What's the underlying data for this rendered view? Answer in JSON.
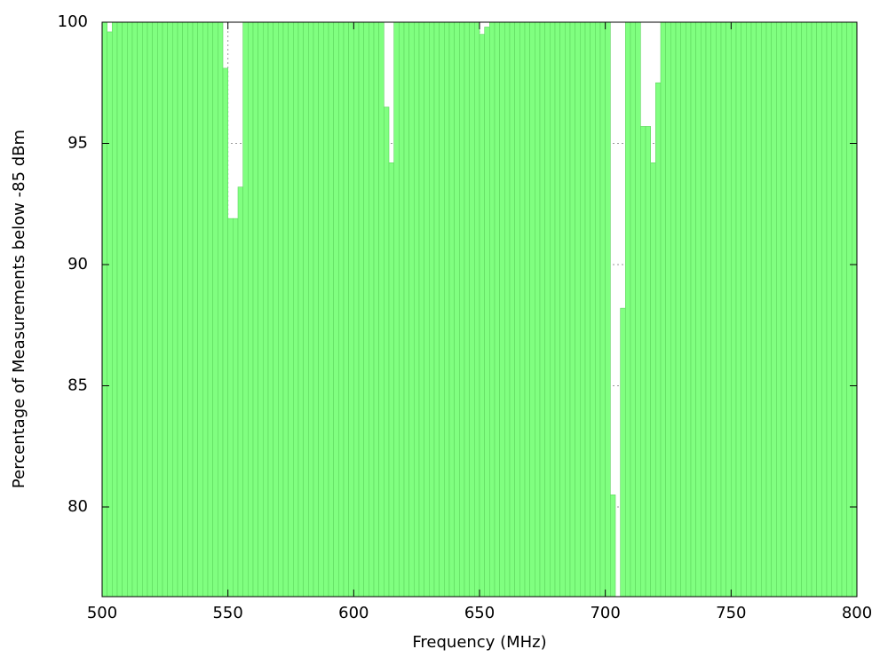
{
  "chart_data": {
    "type": "histogram",
    "x_label": "Frequency (MHz)",
    "y_label": "Percentage of Measurements below -85 dBm",
    "color": "#80ff80",
    "edge_color": "#5ed65e",
    "bins": [
      500,
      502,
      504,
      506,
      508,
      510,
      512,
      514,
      516,
      518,
      520,
      522,
      524,
      526,
      528,
      530,
      532,
      534,
      536,
      538,
      540,
      542,
      544,
      546,
      548,
      550,
      552,
      554,
      556,
      558,
      560,
      562,
      564,
      566,
      568,
      570,
      572,
      574,
      576,
      578,
      580,
      582,
      584,
      586,
      588,
      590,
      592,
      594,
      596,
      598,
      600,
      602,
      604,
      606,
      608,
      610,
      612,
      614,
      616,
      618,
      620,
      622,
      624,
      626,
      628,
      630,
      632,
      634,
      636,
      638,
      640,
      642,
      644,
      646,
      648,
      650,
      652,
      654,
      656,
      658,
      660,
      662,
      664,
      666,
      668,
      670,
      672,
      674,
      676,
      678,
      680,
      682,
      684,
      686,
      688,
      690,
      692,
      694,
      696,
      698,
      700,
      702,
      704,
      706,
      708,
      710,
      712,
      714,
      716,
      718,
      720,
      722,
      724,
      726,
      728,
      730,
      732,
      734,
      736,
      738,
      740,
      742,
      744,
      746,
      748,
      750,
      752,
      754,
      756,
      758,
      760,
      762,
      764,
      766,
      768,
      770,
      772,
      774,
      776,
      778,
      780,
      782,
      784,
      786,
      788,
      790,
      792,
      794,
      796,
      798,
      800
    ],
    "values": [
      100,
      99.6,
      100,
      100,
      100,
      100,
      100,
      100,
      100,
      100,
      100,
      100,
      100,
      100,
      100,
      100,
      100,
      100,
      100,
      100,
      100,
      100,
      100,
      100,
      98.1,
      91.9,
      91.9,
      93.2,
      100,
      100,
      100,
      100,
      100,
      100,
      100,
      100,
      100,
      100,
      100,
      100,
      100,
      100,
      100,
      100,
      100,
      100,
      100,
      100,
      100,
      100,
      100,
      100,
      100,
      100,
      100,
      100,
      96.5,
      94.2,
      100,
      100,
      100,
      100,
      100,
      100,
      100,
      100,
      100,
      100,
      100,
      100,
      100,
      100,
      100,
      100,
      100,
      99.5,
      99.8,
      100,
      100,
      100,
      100,
      100,
      100,
      100,
      100,
      100,
      100,
      100,
      100,
      100,
      100,
      100,
      100,
      100,
      100,
      100,
      100,
      100,
      100,
      100,
      100,
      80.5,
      76,
      88.2,
      100,
      100,
      100,
      95.7,
      95.7,
      94.2,
      97.5,
      100,
      100,
      100,
      100,
      100,
      100,
      100,
      100,
      100,
      100,
      100,
      100,
      100,
      100,
      100,
      100,
      100,
      100,
      100,
      100,
      100,
      100,
      100,
      100,
      100,
      100,
      100,
      100,
      100,
      100,
      100,
      100,
      100,
      100,
      100,
      100,
      100,
      100,
      100
    ],
    "xlim": [
      500,
      800
    ],
    "xticks": [
      500,
      550,
      600,
      650,
      700,
      750,
      800
    ],
    "ylim": [
      76.3,
      100
    ],
    "yticks": [
      80,
      85,
      90,
      95,
      100
    ],
    "grid": true
  }
}
